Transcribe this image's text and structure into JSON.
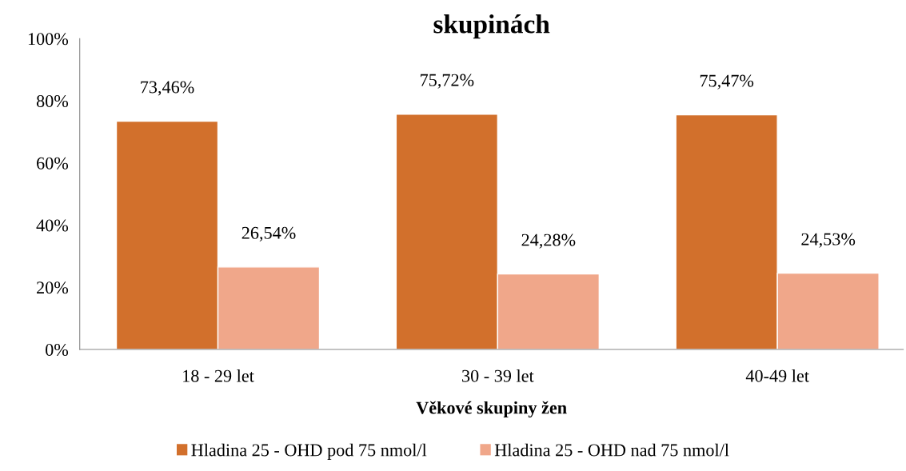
{
  "chart_data": {
    "type": "bar",
    "title": "skupinách",
    "xlabel": "Věkové skupiny žen",
    "categories": [
      "18 - 29 let",
      "30 - 39 let",
      "40-49 let"
    ],
    "series": [
      {
        "name": "Hladina 25 - OHD pod 75 nmol/l",
        "color": "#d2702c",
        "values": [
          73.46,
          75.72,
          75.47
        ],
        "value_labels": [
          "73,46%",
          "75,72%",
          "75,47%"
        ]
      },
      {
        "name": "Hladina 25 - OHD nad 75 nmol/l",
        "color": "#f0a78a",
        "values": [
          26.54,
          24.28,
          24.53
        ],
        "value_labels": [
          "26,54%",
          "24,28%",
          "24,53%"
        ]
      }
    ],
    "ylim": [
      0,
      100
    ],
    "yticks": [
      {
        "value": 0,
        "label": "0%"
      },
      {
        "value": 20,
        "label": "20%"
      },
      {
        "value": 40,
        "label": "40%"
      },
      {
        "value": 60,
        "label": "60%"
      },
      {
        "value": 80,
        "label": "80%"
      },
      {
        "value": 100,
        "label": "100%"
      }
    ],
    "grid": false,
    "legend": "bottom"
  }
}
